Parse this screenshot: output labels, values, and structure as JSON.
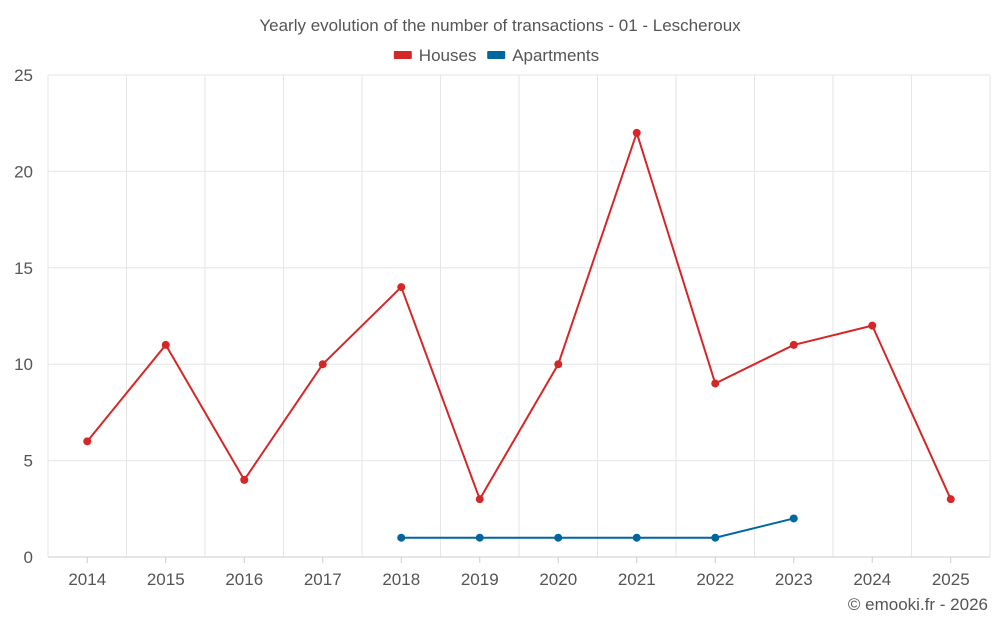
{
  "chart_data": {
    "type": "line",
    "title": "Yearly evolution of the number of transactions - 01 - Lescheroux",
    "categories": [
      "2014",
      "2015",
      "2016",
      "2017",
      "2018",
      "2019",
      "2020",
      "2021",
      "2022",
      "2023",
      "2024",
      "2025"
    ],
    "series": [
      {
        "name": "Houses",
        "color": "#d62728",
        "values": [
          6,
          11,
          4,
          10,
          14,
          3,
          10,
          22,
          9,
          11,
          12,
          3
        ]
      },
      {
        "name": "Apartments",
        "color": "#0066a0",
        "values": [
          null,
          null,
          null,
          null,
          1,
          1,
          1,
          1,
          1,
          2,
          null,
          null
        ]
      }
    ],
    "ylim": [
      0,
      25
    ],
    "yticks": [
      0,
      5,
      10,
      15,
      20,
      25
    ],
    "xlabel": "",
    "ylabel": "",
    "grid": true,
    "legend": "top-center"
  },
  "credit": "© emooki.fr - 2026"
}
